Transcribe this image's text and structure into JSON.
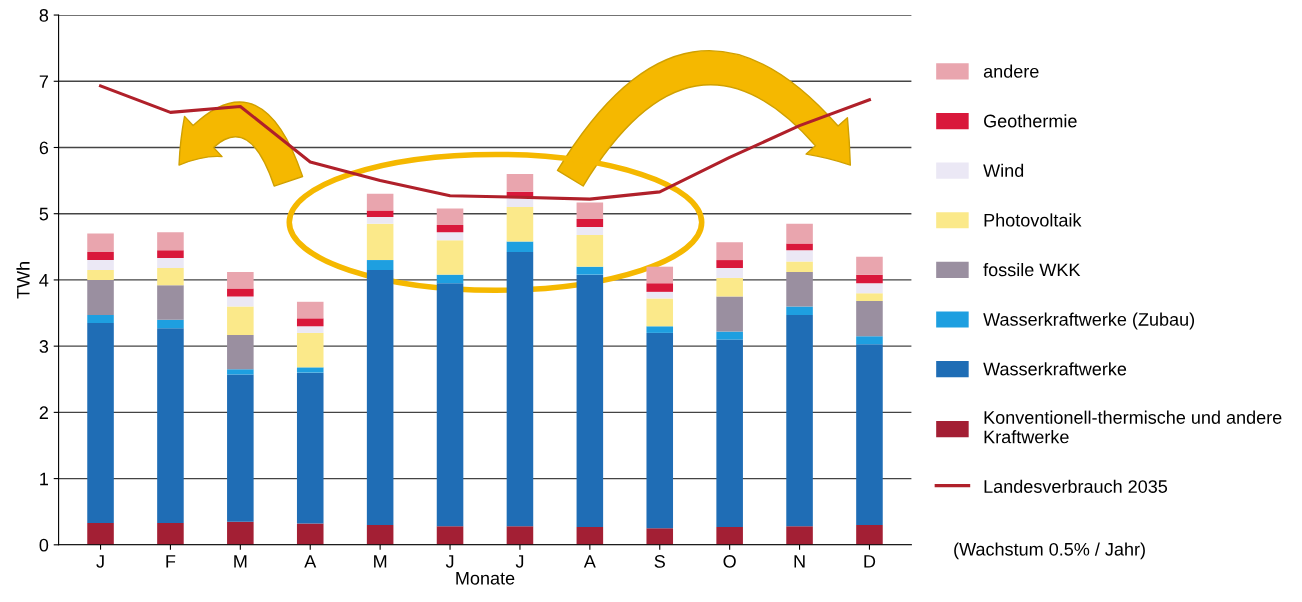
{
  "chart_data": {
    "type": "bar",
    "stacked": true,
    "xlabel": "Monate",
    "ylabel": "TWh",
    "categories": [
      "J",
      "F",
      "M",
      "A",
      "M",
      "J",
      "J",
      "A",
      "S",
      "O",
      "N",
      "D"
    ],
    "ylim": [
      0,
      8
    ],
    "yticks": [
      0,
      1,
      2,
      3,
      4,
      5,
      6,
      7,
      8
    ],
    "grid": "y",
    "legend": "right",
    "series": [
      {
        "name": "Konventionell-thermische und andere\nKraftwerke",
        "color": "#a31f34",
        "values": [
          0.33,
          0.33,
          0.35,
          0.32,
          0.3,
          0.28,
          0.28,
          0.27,
          0.25,
          0.27,
          0.28,
          0.3
        ]
      },
      {
        "name": "Wasserkraftwerke",
        "color": "#1f6db5",
        "values": [
          3.02,
          2.94,
          2.22,
          2.28,
          3.85,
          3.67,
          4.14,
          3.81,
          2.95,
          2.83,
          3.19,
          2.73
        ]
      },
      {
        "name": "Wasserkraftwerke (Zubau)",
        "color": "#1e9fe0",
        "values": [
          0.12,
          0.13,
          0.08,
          0.08,
          0.15,
          0.13,
          0.16,
          0.12,
          0.1,
          0.12,
          0.13,
          0.12
        ]
      },
      {
        "name": "fossile WKK",
        "color": "#9a8fa0",
        "values": [
          0.53,
          0.52,
          0.52,
          0,
          0,
          0,
          0,
          0,
          0,
          0.53,
          0.52,
          0.53
        ]
      },
      {
        "name": "Photovoltaik",
        "color": "#fbe98a",
        "values": [
          0.15,
          0.26,
          0.43,
          0.52,
          0.55,
          0.52,
          0.52,
          0.48,
          0.42,
          0.28,
          0.16,
          0.12
        ]
      },
      {
        "name": "Wind",
        "color": "#ebe8f5",
        "values": [
          0.15,
          0.15,
          0.15,
          0.1,
          0.1,
          0.12,
          0.15,
          0.12,
          0.1,
          0.15,
          0.17,
          0.15
        ]
      },
      {
        "name": "Geothermie",
        "color": "#d9183b",
        "values": [
          0.12,
          0.12,
          0.12,
          0.12,
          0.1,
          0.11,
          0.08,
          0.12,
          0.13,
          0.12,
          0.1,
          0.13
        ]
      },
      {
        "name": "andere",
        "color": "#e9a5ae",
        "values": [
          0.28,
          0.27,
          0.25,
          0.25,
          0.25,
          0.25,
          0.27,
          0.25,
          0.25,
          0.27,
          0.3,
          0.27
        ]
      },
      {
        "name": "Landesverbrauch 2035",
        "type": "line",
        "color": "#b0202a",
        "values": [
          6.93,
          6.53,
          6.62,
          5.78,
          5.5,
          5.27,
          5.25,
          5.22,
          5.33,
          5.85,
          6.33,
          6.72
        ]
      }
    ],
    "annotations": [
      "(Wachstum 0.5% / Jahr)"
    ]
  }
}
